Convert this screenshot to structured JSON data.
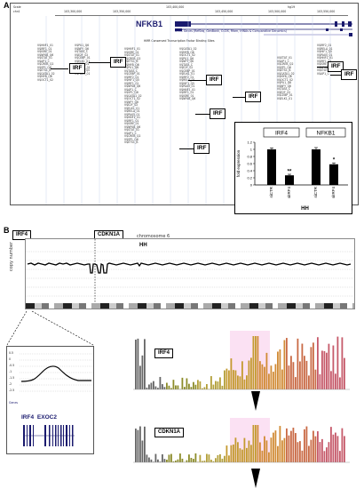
{
  "panel_a": {
    "letter": "A",
    "browser": {
      "scale_label": "Scale",
      "chr_label": "chr4",
      "position_ticks": [
        "103,300,000",
        "103,350,000",
        "103,400,000",
        "103,450,000",
        "103,500,000",
        "103,550,000"
      ],
      "build_label": "hg19",
      "gene": "NFKB1",
      "track_caption": "UCSC Genes (RefSeq, GenBank, CCDS, Rfam, tRNAs & Comparative Genomics)",
      "tfbs_caption": "HMR Conserved Transcription Factor Binding Sites"
    },
    "irf_callouts": [
      "IRF",
      "IRF",
      "IRF",
      "IRF",
      "IRF",
      "IRF",
      "IRF",
      "IRF"
    ],
    "tfbs_sites": [
      "V$HNF1_01",
      "V$IRF1_01",
      "V$ISRE_01",
      "V$NFKB_Q6",
      "V$STAT_01",
      "V$AP1_C",
      "V$CREB_Q2",
      "V$SP1_Q6",
      "V$ETS1_B",
      "V$GATA1_02",
      "V$MYB_Q6",
      "V$OCT1_02",
      "V$PU1_Q6",
      "V$NFY_Q6",
      "V$TATA_C",
      "V$E2F_02",
      "V$CEBP_01",
      "V$ELK1_01",
      "V$IRF2_01",
      "V$RELA_01",
      "V$HIF1_Q5",
      "V$PAX5_01"
    ],
    "inset": {
      "chart_data": {
        "type": "bar",
        "groups": [
          "IRF4",
          "NFKB1"
        ],
        "categories": [
          "siCTR",
          "siIRF4",
          "siCTR",
          "siIRF4"
        ],
        "values": [
          1.0,
          0.27,
          1.0,
          0.58
        ],
        "errors": [
          0.04,
          0.03,
          0.05,
          0.04
        ],
        "significance": [
          "",
          "**",
          "",
          "*"
        ],
        "ylabel": "fold expression",
        "yticks": [
          "0",
          "0.2",
          "0.4",
          "0.6",
          "0.8",
          "1",
          "1.2"
        ],
        "ylim": [
          0,
          1.2
        ],
        "xlabel": "HH",
        "bar_color": "#000000"
      }
    }
  },
  "panel_b": {
    "letter": "B",
    "gene_tags": [
      "IRF4",
      "CDKN1A"
    ],
    "chromosome_label": "chromosome 6",
    "cell_line": "HH",
    "ylabel": "copy number",
    "zoom": {
      "ticks": [
        "0.5",
        "0",
        "-0.5",
        "-1",
        "-1.5",
        "-2",
        "-2.5"
      ],
      "genes_caption": "Genes",
      "gene_labels": [
        "IRF4",
        "EXOC2"
      ]
    },
    "histograms": [
      {
        "title": "IRF4"
      },
      {
        "title": "CDKN1A"
      }
    ]
  },
  "colors": {
    "browser_blue": "#1a1a6e",
    "highlight_pink": "#f2a6d8",
    "olive": "#8c8c2a",
    "bar_black": "#000000"
  }
}
